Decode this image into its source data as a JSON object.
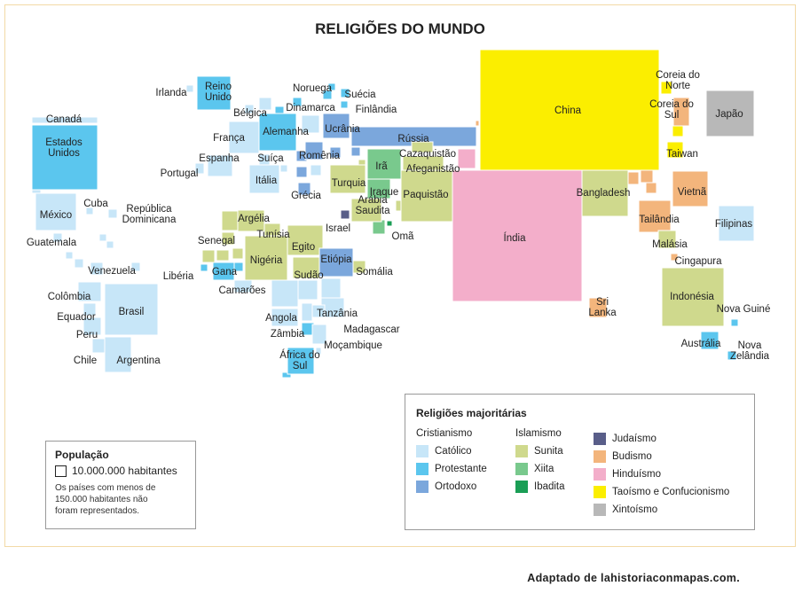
{
  "title": "RELIGIÕES DO MUNDO",
  "source": "Adaptado de lahistoriaconmapas.com.",
  "colors": {
    "catolico": "#c7e6f8",
    "protestante": "#5bc6ee",
    "ortodoxo": "#7ba7dc",
    "sunita": "#cfd98d",
    "xiita": "#79c98d",
    "ibadita": "#1a9e55",
    "judaismo": "#595e89",
    "budismo": "#f3b57c",
    "hinduismo": "#f3aeca",
    "taoismo": "#fbee00",
    "xintoismo": "#b8b8b8"
  },
  "population_legend": {
    "heading": "População",
    "unit": "10.000.000 habitantes",
    "note": [
      "Os países com menos de",
      "150.000 habitantes não",
      "foram representados."
    ]
  },
  "legend": {
    "heading": "Religiões majoritárias",
    "groups": [
      {
        "label": "Cristianismo",
        "items": [
          {
            "key": "catolico",
            "label": "Católico"
          },
          {
            "key": "protestante",
            "label": "Protestante"
          },
          {
            "key": "ortodoxo",
            "label": "Ortodoxo"
          }
        ]
      },
      {
        "label": "Islamismo",
        "items": [
          {
            "key": "sunita",
            "label": "Sunita"
          },
          {
            "key": "xiita",
            "label": "Xiita"
          },
          {
            "key": "ibadita",
            "label": "Ibadita"
          }
        ]
      },
      {
        "label": "",
        "items": [
          {
            "key": "judaismo",
            "label": "Judaísmo"
          },
          {
            "key": "budismo",
            "label": "Budismo"
          },
          {
            "key": "hinduismo",
            "label": "Hinduísmo"
          },
          {
            "key": "taoismo",
            "label": "Taoísmo e Confucionismo"
          },
          {
            "key": "xintoismo",
            "label": "Xintoísmo"
          }
        ]
      }
    ]
  },
  "countries": [
    {
      "name": "Canadá",
      "religion": "catolico"
    },
    {
      "name": "Estados Unidos",
      "religion": "protestante"
    },
    {
      "name": "México",
      "religion": "catolico"
    },
    {
      "name": "Cuba",
      "religion": "catolico"
    },
    {
      "name": "República Dominicana",
      "religion": "catolico"
    },
    {
      "name": "Guatemala",
      "religion": "catolico"
    },
    {
      "name": "Venezuela",
      "religion": "catolico"
    },
    {
      "name": "Colômbia",
      "religion": "catolico"
    },
    {
      "name": "Equador",
      "religion": "catolico"
    },
    {
      "name": "Peru",
      "religion": "catolico"
    },
    {
      "name": "Brasil",
      "religion": "catolico"
    },
    {
      "name": "Chile",
      "religion": "catolico"
    },
    {
      "name": "Argentina",
      "religion": "catolico"
    },
    {
      "name": "Irlanda",
      "religion": "catolico"
    },
    {
      "name": "Reino Unido",
      "religion": "protestante"
    },
    {
      "name": "Bélgica",
      "religion": "catolico"
    },
    {
      "name": "França",
      "religion": "catolico"
    },
    {
      "name": "Espanha",
      "religion": "catolico"
    },
    {
      "name": "Portugal",
      "religion": "catolico"
    },
    {
      "name": "Suíça",
      "religion": "catolico"
    },
    {
      "name": "Itália",
      "religion": "catolico"
    },
    {
      "name": "Alemanha",
      "religion": "protestante"
    },
    {
      "name": "Dinamarca",
      "religion": "protestante"
    },
    {
      "name": "Noruega",
      "religion": "protestante"
    },
    {
      "name": "Suécia",
      "religion": "protestante"
    },
    {
      "name": "Finlândia",
      "religion": "protestante"
    },
    {
      "name": "Ucrânia",
      "religion": "ortodoxo"
    },
    {
      "name": "Romênia",
      "religion": "ortodoxo"
    },
    {
      "name": "Grécia",
      "religion": "ortodoxo"
    },
    {
      "name": "Rússia",
      "religion": "ortodoxo"
    },
    {
      "name": "Cazaquistão",
      "religion": "sunita"
    },
    {
      "name": "Afeganistão",
      "religion": "sunita"
    },
    {
      "name": "Turquia",
      "religion": "sunita"
    },
    {
      "name": "Irã",
      "religion": "xiita"
    },
    {
      "name": "Iraque",
      "religion": "xiita"
    },
    {
      "name": "Arábia Saudita",
      "religion": "sunita"
    },
    {
      "name": "Omã",
      "religion": "ibadita"
    },
    {
      "name": "Israel",
      "religion": "judaismo"
    },
    {
      "name": "Paquistão",
      "religion": "sunita"
    },
    {
      "name": "Índia",
      "religion": "hinduismo"
    },
    {
      "name": "China",
      "religion": "taoismo"
    },
    {
      "name": "Coreia do Norte",
      "religion": "taoismo"
    },
    {
      "name": "Coreia do Sul",
      "religion": "budismo"
    },
    {
      "name": "Japão",
      "religion": "xintoismo"
    },
    {
      "name": "Taiwan",
      "religion": "taoismo"
    },
    {
      "name": "Bangladesh",
      "religion": "sunita"
    },
    {
      "name": "Vietnã",
      "religion": "budismo"
    },
    {
      "name": "Tailândia",
      "religion": "budismo"
    },
    {
      "name": "Filipinas",
      "religion": "catolico"
    },
    {
      "name": "Malásia",
      "religion": "sunita"
    },
    {
      "name": "Cingapura",
      "religion": "budismo"
    },
    {
      "name": "Sri Lanka",
      "religion": "budismo"
    },
    {
      "name": "Indonésia",
      "religion": "sunita"
    },
    {
      "name": "Nova Guiné",
      "religion": "protestante"
    },
    {
      "name": "Austrália",
      "religion": "protestante"
    },
    {
      "name": "Nova Zelândia",
      "religion": "protestante"
    },
    {
      "name": "Argélia",
      "religion": "sunita"
    },
    {
      "name": "Tunísia",
      "religion": "sunita"
    },
    {
      "name": "Senegal",
      "religion": "sunita"
    },
    {
      "name": "Egito",
      "religion": "sunita"
    },
    {
      "name": "Nigéria",
      "religion": "sunita"
    },
    {
      "name": "Libéria",
      "religion": "protestante"
    },
    {
      "name": "Gana",
      "religion": "protestante"
    },
    {
      "name": "Camarões",
      "religion": "catolico"
    },
    {
      "name": "Etiópia",
      "religion": "ortodoxo"
    },
    {
      "name": "Sudão",
      "religion": "sunita"
    },
    {
      "name": "Somália",
      "religion": "sunita"
    },
    {
      "name": "Angola",
      "religion": "catolico"
    },
    {
      "name": "Tanzânia",
      "religion": "catolico"
    },
    {
      "name": "Zâmbia",
      "religion": "protestante"
    },
    {
      "name": "Madagascar",
      "religion": "catolico"
    },
    {
      "name": "Moçambique",
      "religion": "catolico"
    },
    {
      "name": "África do Sul",
      "religion": "protestante"
    }
  ]
}
